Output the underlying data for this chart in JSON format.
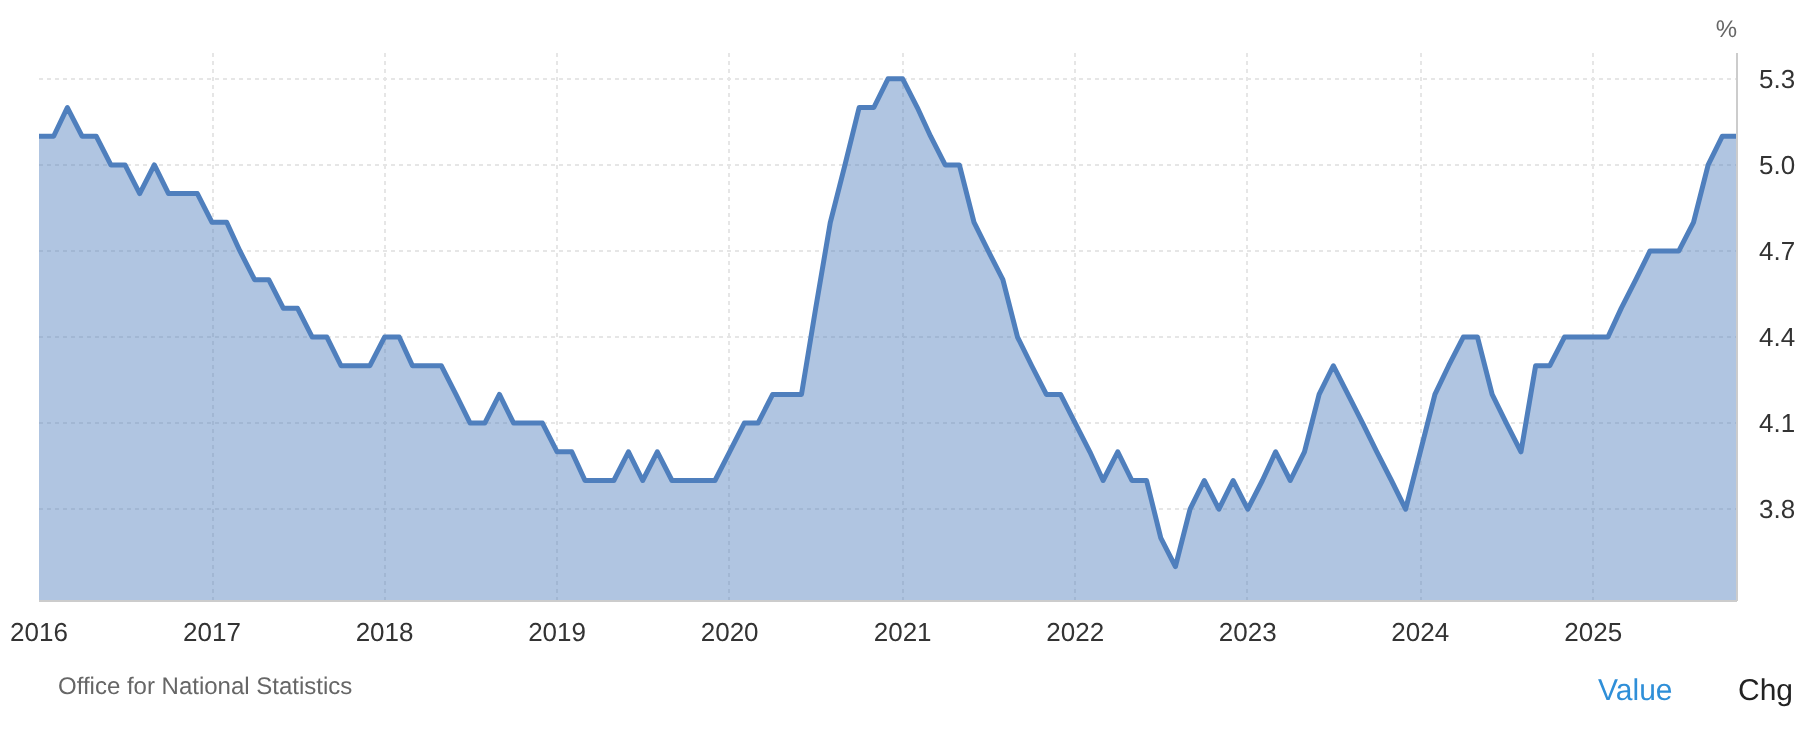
{
  "chart_data": {
    "type": "area",
    "ylabel": "%",
    "x": [
      "2016-01",
      "2016-02",
      "2016-03",
      "2016-04",
      "2016-05",
      "2016-06",
      "2016-07",
      "2016-08",
      "2016-09",
      "2016-10",
      "2016-11",
      "2016-12",
      "2017-01",
      "2017-02",
      "2017-03",
      "2017-04",
      "2017-05",
      "2017-06",
      "2017-07",
      "2017-08",
      "2017-09",
      "2017-10",
      "2017-11",
      "2017-12",
      "2018-01",
      "2018-02",
      "2018-03",
      "2018-04",
      "2018-05",
      "2018-06",
      "2018-07",
      "2018-08",
      "2018-09",
      "2018-10",
      "2018-11",
      "2018-12",
      "2019-01",
      "2019-02",
      "2019-03",
      "2019-04",
      "2019-05",
      "2019-06",
      "2019-07",
      "2019-08",
      "2019-09",
      "2019-10",
      "2019-11",
      "2019-12",
      "2020-01",
      "2020-02",
      "2020-03",
      "2020-04",
      "2020-05",
      "2020-06",
      "2020-07",
      "2020-08",
      "2020-09",
      "2020-10",
      "2020-11",
      "2020-12",
      "2021-01",
      "2021-02",
      "2021-03",
      "2021-04",
      "2021-05",
      "2021-06",
      "2021-07",
      "2021-08",
      "2021-09",
      "2021-10",
      "2021-11",
      "2021-12",
      "2022-01",
      "2022-02",
      "2022-03",
      "2022-04",
      "2022-05",
      "2022-06",
      "2022-07",
      "2022-08",
      "2022-09",
      "2022-10",
      "2022-11",
      "2022-12",
      "2023-01",
      "2023-02",
      "2023-03",
      "2023-04",
      "2023-05",
      "2023-06",
      "2023-07",
      "2023-08",
      "2023-09",
      "2023-10",
      "2023-11",
      "2023-12",
      "2024-01",
      "2024-02",
      "2024-03",
      "2024-04",
      "2024-05",
      "2024-06",
      "2024-07",
      "2024-08",
      "2024-09",
      "2024-10",
      "2024-11",
      "2024-12",
      "2025-01",
      "2025-02",
      "2025-03",
      "2025-04",
      "2025-05",
      "2025-06",
      "2025-07",
      "2025-08",
      "2025-09",
      "2025-10",
      "2025-11"
    ],
    "series": [
      {
        "color": "#4f7fbd",
        "values": [
          5.1,
          5.1,
          5.2,
          5.1,
          5.1,
          5.0,
          5.0,
          4.9,
          5.0,
          4.9,
          4.9,
          4.9,
          4.8,
          4.8,
          4.7,
          4.6,
          4.6,
          4.5,
          4.5,
          4.4,
          4.4,
          4.3,
          4.3,
          4.3,
          4.4,
          4.4,
          4.3,
          4.3,
          4.3,
          4.2,
          4.1,
          4.1,
          4.2,
          4.1,
          4.1,
          4.1,
          4.0,
          4.0,
          3.9,
          3.9,
          3.9,
          4.0,
          3.9,
          4.0,
          3.9,
          3.9,
          3.9,
          3.9,
          4.0,
          4.1,
          4.1,
          4.2,
          4.2,
          4.2,
          4.5,
          4.8,
          5.0,
          5.2,
          5.2,
          5.3,
          5.3,
          5.2,
          5.1,
          5.0,
          5.0,
          4.8,
          4.7,
          4.6,
          4.4,
          4.3,
          4.2,
          4.2,
          4.1,
          4.0,
          3.9,
          4.0,
          3.9,
          3.9,
          3.7,
          3.6,
          3.8,
          3.9,
          3.8,
          3.9,
          3.8,
          3.9,
          4.0,
          3.9,
          4.0,
          4.2,
          4.3,
          4.2,
          4.1,
          4.0,
          3.9,
          3.8,
          4.0,
          4.2,
          4.3,
          4.4,
          4.4,
          4.2,
          4.1,
          4.0,
          4.3,
          4.3,
          4.4,
          4.4,
          4.4,
          4.4,
          4.5,
          4.6,
          4.7,
          4.7,
          4.7,
          4.8,
          5.0,
          5.1,
          5.1
        ]
      }
    ],
    "xlim": [
      "2016-01",
      "2025-11"
    ],
    "xticks": [
      "2016",
      "2017",
      "2018",
      "2019",
      "2020",
      "2021",
      "2022",
      "2023",
      "2024",
      "2025"
    ],
    "ylim": [
      3.48,
      5.39
    ],
    "yticks": [
      3.8,
      4.1,
      4.4,
      4.7,
      {
        "value": 5,
        "label": "5.0"
      },
      5.3
    ],
    "grid": true,
    "annotations": [
      "Office for National Statistics",
      "Value",
      "Chg"
    ]
  }
}
